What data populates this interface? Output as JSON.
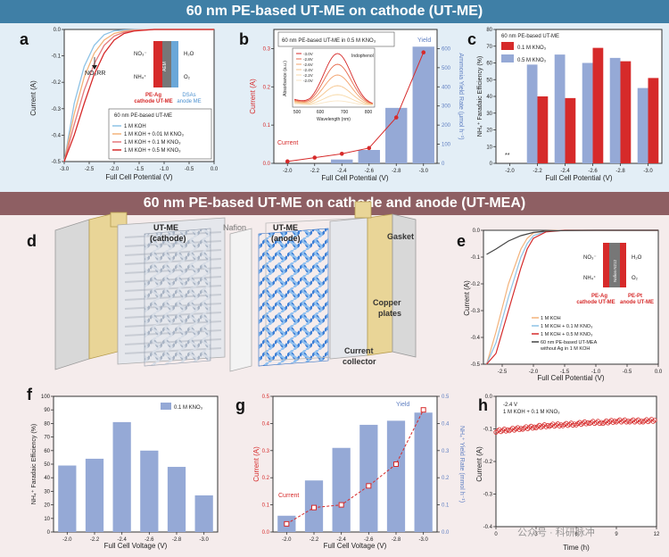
{
  "banners": {
    "top": "60 nm PE-based UT-ME on cathode (UT-ME)",
    "bottom": "60 nm PE-based UT-ME on cathode and anode (UT-MEA)"
  },
  "colors": {
    "red": "#d62a2a",
    "blue": "#95a9d6",
    "lightblue": "#8ec3e6",
    "orange": "#f3b27a",
    "dark": "#333333"
  },
  "panels": {
    "a": {
      "letter": "a",
      "ylabel": "Current (A)",
      "xlabel": "Full Cell Potential (V)",
      "xticks": [
        "-3.0",
        "-2.5",
        "-2.0",
        "-1.5",
        "-1.0",
        "-0.5",
        "0.0"
      ],
      "yticks": [
        "0.0",
        "-0.1",
        "-0.2",
        "-0.3",
        "-0.4",
        "-0.5"
      ],
      "annotation": "NO₃RR",
      "legend_title": "60 nm PE-based  UT-ME",
      "legend": [
        "1 M KOH",
        "1 M KOH + 0.01 M KNO₃",
        "1 M KOH + 0.1 M KNO₃",
        "1 M KOH + 0.5 M KNO₃"
      ],
      "inset": {
        "no3": "NO₃⁻",
        "nh4": "NH₄⁺",
        "h2o": "H₂O",
        "o2": "O₂",
        "aem": "AEM",
        "left_label1": "PE-Ag",
        "left_label2": "cathode UT-ME",
        "right_label1": "DSAs",
        "right_label2": "anode ME"
      }
    },
    "b": {
      "letter": "b",
      "ylabel": "Current (A)",
      "ylabel2": "Ammonia Yield Rate (μmol h⁻¹)",
      "xlabel": "Full Cell Potential (V)",
      "categories": [
        "-2.0",
        "-2.2",
        "-2.4",
        "-2.6",
        "-2.8",
        "-3.0"
      ],
      "yticks": [
        "0.0",
        "0.1",
        "0.2",
        "0.3"
      ],
      "y2ticks": [
        "0",
        "100",
        "200",
        "300",
        "400",
        "500",
        "600"
      ],
      "label_current": "Current",
      "label_yield": "Yield",
      "inset_title": "60 nm PE-based UT-ME in 0.5 M KNO₃",
      "inset_ylabel": "Absorbance (a.u.)",
      "inset_xlabel": "Wavelength (nm)",
      "inset_xticks": [
        "500",
        "600",
        "700",
        "800"
      ],
      "inset_peak": "Indophenol",
      "inset_legend": [
        "-3.0V",
        "-2.8V",
        "-2.6V",
        "-2.4V",
        "-2.2V",
        "-2.0V"
      ]
    },
    "c": {
      "letter": "c",
      "ylabel": "NH₄⁺ Faradaic Efficiency (%)",
      "xlabel": "Full Cell Potential (V)",
      "categories": [
        "-2.0",
        "-2.2",
        "-2.4",
        "-2.6",
        "-2.8",
        "-3.0"
      ],
      "yticks": [
        "0",
        "10",
        "20",
        "30",
        "40",
        "50",
        "60",
        "70",
        "80"
      ],
      "legend_title": "60 nm PE-based UT-ME",
      "legend": [
        "0.1 M KNO₃",
        "0.5 M KNO₃"
      ],
      "stars": "**"
    },
    "d": {
      "letter": "d",
      "labels": [
        "UT-ME",
        "(cathode)",
        "Nafion",
        "UT-ME",
        "(anode)",
        "Gasket",
        "Copper",
        "plates",
        "Current",
        "collector"
      ]
    },
    "e": {
      "letter": "e",
      "ylabel": "Current (A)",
      "xlabel": "Full Cell Potential (V)",
      "xticks": [
        "-2.5",
        "-2.0",
        "-1.5",
        "-1.0",
        "-0.5",
        "0.0"
      ],
      "yticks": [
        "0.0",
        "-0.1",
        "-0.2",
        "-0.3",
        "-0.4",
        "-0.5"
      ],
      "legend": [
        "1 M KOH",
        "1 M KOH + 0.1 M KNO₃",
        "1 M KOH + 0.5 M KNO₃",
        "60 nm PE-based UT-MEA",
        "without Ag  in 1 M KOH"
      ],
      "inset": {
        "no3": "NO₃⁻",
        "nh4": "NH₄⁺",
        "h2o": "H₂O",
        "o2": "O₂",
        "mem": "Nafion N212",
        "left_label1": "PE-Ag",
        "left_label2": "cathode UT-ME",
        "right_label1": "PE-Pt",
        "right_label2": "anode UT-ME"
      }
    },
    "f": {
      "letter": "f",
      "ylabel": "NH₄⁺ Faradaic Efficiency (%)",
      "xlabel": "Full Cell Voltage (V)",
      "categories": [
        "-2.0",
        "-2.2",
        "-2.4",
        "-2.6",
        "-2.8",
        "-3.0"
      ],
      "yticks": [
        "0",
        "10",
        "20",
        "30",
        "40",
        "50",
        "60",
        "70",
        "80",
        "90",
        "100"
      ],
      "legend": [
        "0.1 M KNO₃"
      ]
    },
    "g": {
      "letter": "g",
      "ylabel": "Current (A)",
      "ylabel2": "NH₄⁺ Yield Rate (mmol h⁻¹)",
      "xlabel": "Full Cell Voltage (V)",
      "categories": [
        "-2.0",
        "-2.2",
        "-2.4",
        "-2.6",
        "-2.8",
        "-3.0"
      ],
      "yticks": [
        "0.0",
        "0.1",
        "0.2",
        "0.3",
        "0.4",
        "0.5"
      ],
      "y2ticks": [
        "0.0",
        "0.1",
        "0.2",
        "0.3",
        "0.4",
        "0.5"
      ],
      "label_current": "Current",
      "label_yield": "Yield"
    },
    "h": {
      "letter": "h",
      "ylabel": "Current (A)",
      "xlabel": "Time (h)",
      "xticks": [
        "0",
        "3",
        "6",
        "9",
        "12"
      ],
      "yticks": [
        "0.0",
        "-0.1",
        "-0.2",
        "-0.3",
        "-0.4"
      ],
      "notes": [
        "-2.4 V",
        "1 M KOH + 0.1 M KNO₃"
      ]
    }
  },
  "watermark": "公众号 · 科研脉冲",
  "chart_data": [
    {
      "type": "line",
      "title": "",
      "panel": "a",
      "xlabel": "Full Cell Potential (V)",
      "ylabel": "Current (A)",
      "xlim": [
        -3.0,
        0.0
      ],
      "ylim": [
        -0.5,
        0.0
      ],
      "series": [
        {
          "name": "1 M KOH",
          "x": [
            -3.0,
            -2.8,
            -2.6,
            -2.4,
            -2.2,
            -2.0,
            -1.8,
            -1.6,
            -1.2,
            -0.5,
            0.0
          ],
          "y": [
            -0.5,
            -0.28,
            -0.14,
            -0.06,
            -0.02,
            -0.005,
            -0.002,
            -0.001,
            0,
            0,
            0
          ]
        },
        {
          "name": "1 M KOH + 0.01 M KNO₃",
          "x": [
            -3.0,
            -2.8,
            -2.6,
            -2.4,
            -2.2,
            -2.0,
            -1.8,
            -1.6,
            -1.2,
            -0.5,
            0.0
          ],
          "y": [
            -0.5,
            -0.32,
            -0.18,
            -0.09,
            -0.04,
            -0.015,
            -0.006,
            -0.002,
            0,
            0,
            0
          ]
        },
        {
          "name": "1 M KOH + 0.1 M KNO₃",
          "x": [
            -3.0,
            -2.8,
            -2.6,
            -2.4,
            -2.2,
            -2.0,
            -1.8,
            -1.6,
            -1.2,
            -0.5,
            0.0
          ],
          "y": [
            -0.5,
            -0.36,
            -0.23,
            -0.13,
            -0.06,
            -0.025,
            -0.01,
            -0.004,
            0,
            0,
            0
          ]
        },
        {
          "name": "1 M KOH + 0.5 M KNO₃",
          "x": [
            -3.0,
            -2.8,
            -2.6,
            -2.4,
            -2.2,
            -2.0,
            -1.8,
            -1.6,
            -1.2,
            -0.5,
            0.0
          ],
          "y": [
            -0.5,
            -0.4,
            -0.28,
            -0.17,
            -0.09,
            -0.04,
            -0.015,
            -0.006,
            0,
            0,
            0
          ]
        }
      ]
    },
    {
      "type": "bar",
      "title": "",
      "panel": "b",
      "categories": [
        "-2.0",
        "-2.2",
        "-2.4",
        "-2.6",
        "-2.8",
        "-3.0"
      ],
      "series": [
        {
          "name": "Yield",
          "axis": "right",
          "values": [
            0,
            0,
            20,
            70,
            290,
            610
          ]
        },
        {
          "name": "Current",
          "axis": "left",
          "values": [
            0.005,
            0.015,
            0.025,
            0.04,
            0.12,
            0.29
          ]
        }
      ],
      "ylim": [
        0,
        0.35
      ],
      "y2lim": [
        0,
        700
      ]
    },
    {
      "type": "bar",
      "title": "",
      "panel": "c",
      "categories": [
        "-2.0",
        "-2.2",
        "-2.4",
        "-2.6",
        "-2.8",
        "-3.0"
      ],
      "series": [
        {
          "name": "0.1 M KNO₃",
          "values": [
            0,
            40,
            39,
            69,
            61,
            51
          ]
        },
        {
          "name": "0.5 M KNO₃",
          "values": [
            0,
            59,
            65,
            60,
            63,
            45
          ]
        }
      ],
      "ylim": [
        0,
        80
      ]
    },
    {
      "type": "line",
      "title": "",
      "panel": "e",
      "xlabel": "Full Cell Potential (V)",
      "ylabel": "Current (A)",
      "xlim": [
        -2.8,
        0.0
      ],
      "ylim": [
        -0.5,
        0.0
      ],
      "series": [
        {
          "name": "1 M KOH",
          "x": [
            -2.75,
            -2.6,
            -2.4,
            -2.2,
            -2.1,
            -2.0,
            -1.8,
            -1.5,
            -1.0,
            0.0
          ],
          "y": [
            -0.5,
            -0.38,
            -0.2,
            -0.07,
            -0.03,
            -0.01,
            -0.002,
            0,
            0,
            0
          ]
        },
        {
          "name": "1 M KOH + 0.1 M KNO₃",
          "x": [
            -2.75,
            -2.6,
            -2.4,
            -2.2,
            -2.1,
            -2.0,
            -1.8,
            -1.5,
            -1.0,
            0.0
          ],
          "y": [
            -0.5,
            -0.42,
            -0.25,
            -0.1,
            -0.05,
            -0.02,
            -0.004,
            0,
            0,
            0
          ]
        },
        {
          "name": "1 M KOH + 0.5 M KNO₃",
          "x": [
            -2.75,
            -2.6,
            -2.4,
            -2.2,
            -2.1,
            -2.0,
            -1.8,
            -1.5,
            -1.0,
            0.0
          ],
          "y": [
            -0.5,
            -0.46,
            -0.3,
            -0.14,
            -0.07,
            -0.03,
            -0.006,
            0,
            0,
            0
          ]
        },
        {
          "name": "60 nm PE-based UT-MEA without Ag  in 1 M KOH",
          "x": [
            -2.75,
            -2.6,
            -2.4,
            -2.2,
            -2.0,
            -1.8,
            -1.5,
            -1.0,
            0.0
          ],
          "y": [
            -0.09,
            -0.07,
            -0.04,
            -0.02,
            -0.008,
            -0.003,
            -0.001,
            0,
            0
          ]
        }
      ]
    },
    {
      "type": "bar",
      "title": "",
      "panel": "f",
      "categories": [
        "-2.0",
        "-2.2",
        "-2.4",
        "-2.6",
        "-2.8",
        "-3.0"
      ],
      "series": [
        {
          "name": "0.1 M KNO₃",
          "values": [
            49,
            54,
            81,
            60,
            48,
            27
          ]
        }
      ],
      "ylim": [
        0,
        100
      ]
    },
    {
      "type": "bar",
      "title": "",
      "panel": "g",
      "categories": [
        "-2.0",
        "-2.2",
        "-2.4",
        "-2.6",
        "-2.8",
        "-3.0"
      ],
      "series": [
        {
          "name": "Yield",
          "axis": "right",
          "values": [
            0.06,
            0.19,
            0.31,
            0.395,
            0.41,
            0.44
          ]
        },
        {
          "name": "Current",
          "axis": "left",
          "values": [
            0.03,
            0.09,
            0.1,
            0.17,
            0.25,
            0.45
          ]
        }
      ],
      "ylim": [
        0,
        0.5
      ],
      "y2lim": [
        0,
        0.5
      ]
    },
    {
      "type": "scatter",
      "title": "",
      "panel": "h",
      "xlabel": "Time (h)",
      "ylabel": "Current (A)",
      "xlim": [
        0,
        12
      ],
      "ylim": [
        -0.45,
        0.0
      ],
      "series": [
        {
          "name": "",
          "x": [
            0,
            1,
            2,
            3,
            4,
            5,
            6,
            7,
            8,
            9,
            10,
            11,
            12
          ],
          "y": [
            -0.12,
            -0.115,
            -0.11,
            -0.105,
            -0.1,
            -0.098,
            -0.095,
            -0.09,
            -0.09,
            -0.085,
            -0.085,
            -0.085,
            -0.082
          ]
        }
      ]
    }
  ]
}
